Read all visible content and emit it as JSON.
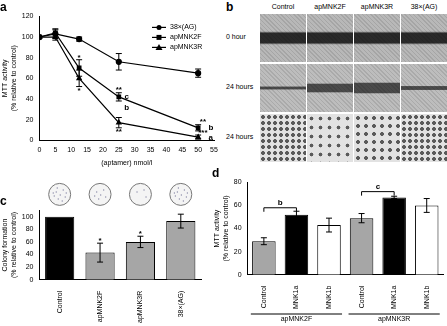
{
  "chart_data": [
    {
      "type": "line",
      "title": "a",
      "x_label": "(aptamer) nmol/l",
      "y_label": "MTT activity (% relative to control)",
      "x": [
        0,
        5,
        12.5,
        25,
        50
      ],
      "xlim": [
        0,
        55
      ],
      "xticks": [
        0,
        5,
        10,
        15,
        20,
        25,
        30,
        35,
        40,
        45,
        50,
        55
      ],
      "ylim": [
        0,
        120
      ],
      "yticks": [
        0,
        20,
        40,
        60,
        80,
        100,
        120
      ],
      "grid": false,
      "legend": "upper right",
      "series": [
        {
          "name": "38×(AG)",
          "color": "#000000",
          "marker": "circle",
          "values": [
            100,
            103,
            98,
            76,
            65
          ],
          "errors": [
            0,
            4,
            2,
            8,
            4
          ]
        },
        {
          "name": "apMNK2F",
          "color": "#000000",
          "marker": "square",
          "values": [
            100,
            104,
            70,
            42,
            12
          ],
          "errors": [
            0,
            4,
            8,
            4,
            3
          ]
        },
        {
          "name": "apMNK3R",
          "color": "#000000",
          "marker": "triangle",
          "values": [
            100,
            100,
            60,
            17,
            3
          ],
          "errors": [
            0,
            3,
            8,
            5,
            2
          ]
        }
      ],
      "annotations": [
        {
          "x": 12.5,
          "y": 80,
          "text": "*"
        },
        {
          "x": 12.5,
          "y": 48,
          "text": "*"
        },
        {
          "x": 25,
          "y": 49,
          "text": "**"
        },
        {
          "x": 27.5,
          "y": 42,
          "text": "c"
        },
        {
          "x": 27.5,
          "y": 31,
          "text": "b"
        },
        {
          "x": 25,
          "y": 8,
          "text": "**"
        },
        {
          "x": 51.5,
          "y": 18,
          "text": "**"
        },
        {
          "x": 54,
          "y": 12,
          "text": "b"
        },
        {
          "x": 51.5,
          "y": 7,
          "text": "***"
        },
        {
          "x": 54,
          "y": 2,
          "text": "a"
        }
      ]
    },
    {
      "type": "bar",
      "title": "c",
      "y_label": "Colony formation (% relative to control)",
      "categories": [
        "Control",
        "apMNK2F",
        "apMNK3R",
        "38×(AG)"
      ],
      "values": [
        100,
        43,
        60,
        93
      ],
      "errors": [
        0,
        15,
        9,
        11
      ],
      "colors": [
        "#000000",
        "#a6a6a6",
        "#a6a6a6",
        "#a6a6a6"
      ],
      "ylim": [
        0,
        110
      ],
      "yticks": [
        0,
        20,
        40,
        60,
        80,
        100
      ],
      "grid": false,
      "annotations": [
        {
          "category": "apMNK2F",
          "y": 62,
          "text": "*"
        },
        {
          "category": "apMNK3R",
          "y": 73,
          "text": "*"
        }
      ]
    },
    {
      "type": "bar",
      "title": "d",
      "y_label": "MTT activity (% relative to control)",
      "categories": [
        "Control",
        "MNK1a",
        "MNK1b",
        "Control",
        "MNK1a",
        "MNK1b"
      ],
      "values": [
        29,
        52,
        43,
        49,
        67,
        60
      ],
      "errors": [
        3,
        3,
        6,
        4,
        1,
        6
      ],
      "colors": [
        "#a6a6a6",
        "#000000",
        "#ffffff",
        "#a6a6a6",
        "#000000",
        "#ffffff"
      ],
      "groups": [
        {
          "name": "apMNK2F",
          "size": 3
        },
        {
          "name": "apMNK3R",
          "size": 3
        }
      ],
      "ylim": [
        0,
        80
      ],
      "yticks": [
        0,
        20,
        40,
        60,
        80
      ],
      "grid": false,
      "annotations": [
        {
          "from": 0,
          "to": 1,
          "y": 58,
          "text": "b"
        },
        {
          "from": 3,
          "to": 4,
          "y": 72,
          "text": "c"
        }
      ]
    }
  ],
  "image_panel": {
    "title": "b",
    "columns": [
      "Control",
      "apMNK2F",
      "apMNK3R",
      "38×(AG)"
    ],
    "rows": [
      "0 hour",
      "24 hours",
      "24 hours"
    ]
  }
}
